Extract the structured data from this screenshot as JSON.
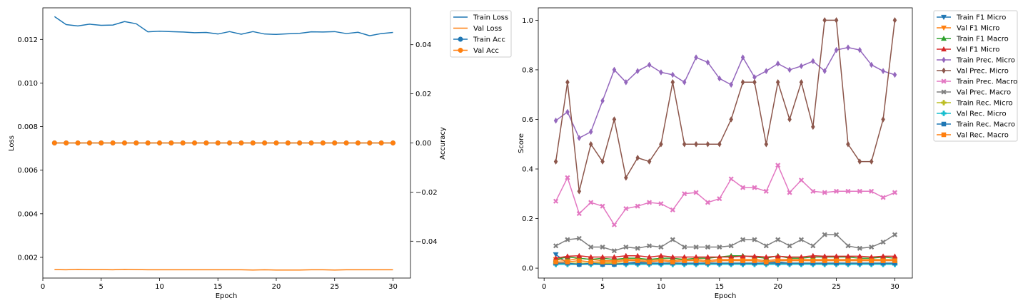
{
  "chart_data": [
    {
      "type": "line",
      "xlabel": "Epoch",
      "ylabel": "Loss",
      "y2label": "Accuracy",
      "xlim": [
        0,
        31.5
      ],
      "ylim": [
        0.00105,
        0.01345
      ],
      "y2lim": [
        -0.055,
        0.055
      ],
      "xticks": [
        0,
        5,
        10,
        15,
        20,
        25,
        30
      ],
      "xtick_labels": [
        "0",
        "5",
        "10",
        "15",
        "20",
        "25",
        "30"
      ],
      "yticks": [
        0.002,
        0.004,
        0.006,
        0.008,
        0.01,
        0.012
      ],
      "ytick_labels": [
        "0.002",
        "0.004",
        "0.006",
        "0.008",
        "0.010",
        "0.012"
      ],
      "y2ticks": [
        -0.04,
        -0.02,
        0.0,
        0.02,
        0.04
      ],
      "y2tick_labels": [
        "−0.04",
        "−0.02",
        "0.00",
        "0.02",
        "0.04"
      ],
      "legend_position": "outside-top-right",
      "x": [
        1,
        2,
        3,
        4,
        5,
        6,
        7,
        8,
        9,
        10,
        11,
        12,
        13,
        14,
        15,
        16,
        17,
        18,
        19,
        20,
        21,
        22,
        23,
        24,
        25,
        26,
        27,
        28,
        29,
        30
      ],
      "series": [
        {
          "name": "Train Loss",
          "axis": "left",
          "color": "#1f77b4",
          "marker": "none",
          "values": [
            0.01305,
            0.01268,
            0.01262,
            0.0127,
            0.01265,
            0.01266,
            0.01282,
            0.01272,
            0.01235,
            0.01238,
            0.01236,
            0.01234,
            0.01231,
            0.01232,
            0.01225,
            0.01236,
            0.01224,
            0.01236,
            0.01225,
            0.01223,
            0.01226,
            0.01228,
            0.01235,
            0.01234,
            0.01236,
            0.01227,
            0.01233,
            0.01217,
            0.01227,
            0.01232
          ]
        },
        {
          "name": "Val Loss",
          "axis": "left",
          "color": "#ff7f0e",
          "marker": "none",
          "values": [
            0.00144,
            0.00143,
            0.00145,
            0.00144,
            0.00144,
            0.00143,
            0.00145,
            0.00144,
            0.00143,
            0.00143,
            0.00143,
            0.00143,
            0.00143,
            0.00143,
            0.00143,
            0.00143,
            0.00143,
            0.00142,
            0.00143,
            0.00142,
            0.00142,
            0.00142,
            0.00143,
            0.00143,
            0.00142,
            0.00143,
            0.00143,
            0.00143,
            0.00143,
            0.00143
          ]
        },
        {
          "name": "Train Acc",
          "axis": "right",
          "color": "#1f77b4",
          "marker": "circle",
          "values": [
            0,
            0,
            0,
            0,
            0,
            0,
            0,
            0,
            0,
            0,
            0,
            0,
            0,
            0,
            0,
            0,
            0,
            0,
            0,
            0,
            0,
            0,
            0,
            0,
            0,
            0,
            0,
            0,
            0,
            0
          ]
        },
        {
          "name": "Val Acc",
          "axis": "right",
          "color": "#ff7f0e",
          "marker": "circle",
          "values": [
            0,
            0,
            0,
            0,
            0,
            0,
            0,
            0,
            0,
            0,
            0,
            0,
            0,
            0,
            0,
            0,
            0,
            0,
            0,
            0,
            0,
            0,
            0,
            0,
            0,
            0,
            0,
            0,
            0,
            0
          ]
        }
      ]
    },
    {
      "type": "line",
      "xlabel": "Epoch",
      "ylabel": "Score",
      "xlim": [
        -0.5,
        31.5
      ],
      "ylim": [
        -0.04,
        1.05
      ],
      "xticks": [
        0,
        5,
        10,
        15,
        20,
        25,
        30
      ],
      "xtick_labels": [
        "0",
        "5",
        "10",
        "15",
        "20",
        "25",
        "30"
      ],
      "yticks": [
        0.0,
        0.2,
        0.4,
        0.6,
        0.8,
        1.0
      ],
      "ytick_labels": [
        "0.0",
        "0.2",
        "0.4",
        "0.6",
        "0.8",
        "1.0"
      ],
      "legend_position": "outside-top-right",
      "x": [
        1,
        2,
        3,
        4,
        5,
        6,
        7,
        8,
        9,
        10,
        11,
        12,
        13,
        14,
        15,
        16,
        17,
        18,
        19,
        20,
        21,
        22,
        23,
        24,
        25,
        26,
        27,
        28,
        29,
        30
      ],
      "series": [
        {
          "name": "Train F1 Micro",
          "color": "#1f77b4",
          "marker": "tri-down",
          "values": [
            0.055,
            0.02,
            0.015,
            0.02,
            0.02,
            0.015,
            0.02,
            0.025,
            0.02,
            0.02,
            0.02,
            0.02,
            0.02,
            0.02,
            0.02,
            0.02,
            0.02,
            0.02,
            0.02,
            0.025,
            0.02,
            0.02,
            0.02,
            0.02,
            0.02,
            0.02,
            0.02,
            0.02,
            0.02,
            0.02
          ]
        },
        {
          "name": "Val F1 Micro",
          "color": "#ff7f0e",
          "marker": "tri-down",
          "values": [
            0.035,
            0.03,
            0.04,
            0.035,
            0.03,
            0.03,
            0.035,
            0.035,
            0.03,
            0.035,
            0.03,
            0.035,
            0.035,
            0.03,
            0.035,
            0.035,
            0.035,
            0.035,
            0.03,
            0.035,
            0.035,
            0.035,
            0.035,
            0.035,
            0.035,
            0.035,
            0.035,
            0.035,
            0.035,
            0.035
          ]
        },
        {
          "name": "Train F1 Macro",
          "color": "#2ca02c",
          "marker": "tri-up",
          "values": [
            0.035,
            0.045,
            0.04,
            0.035,
            0.04,
            0.035,
            0.04,
            0.04,
            0.035,
            0.04,
            0.04,
            0.035,
            0.04,
            0.04,
            0.045,
            0.05,
            0.05,
            0.045,
            0.04,
            0.05,
            0.04,
            0.04,
            0.045,
            0.045,
            0.045,
            0.045,
            0.04,
            0.04,
            0.045,
            0.04
          ]
        },
        {
          "name": "Val F1 Micro",
          "color": "#d62728",
          "marker": "tri-up",
          "values": [
            0.04,
            0.048,
            0.05,
            0.045,
            0.045,
            0.045,
            0.05,
            0.05,
            0.045,
            0.05,
            0.045,
            0.045,
            0.045,
            0.045,
            0.045,
            0.045,
            0.048,
            0.048,
            0.045,
            0.048,
            0.045,
            0.045,
            0.05,
            0.048,
            0.048,
            0.048,
            0.048,
            0.045,
            0.048,
            0.048
          ]
        },
        {
          "name": "Train Prec. Micro",
          "color": "#9467bd",
          "marker": "thin-diamond",
          "values": [
            0.595,
            0.63,
            0.525,
            0.55,
            0.675,
            0.8,
            0.75,
            0.795,
            0.82,
            0.79,
            0.78,
            0.75,
            0.85,
            0.83,
            0.765,
            0.74,
            0.85,
            0.77,
            0.795,
            0.825,
            0.8,
            0.815,
            0.835,
            0.795,
            0.88,
            0.89,
            0.88,
            0.82,
            0.795,
            0.78
          ]
        },
        {
          "name": "Val Prec. Micro",
          "color": "#8c564b",
          "marker": "thin-diamond",
          "values": [
            0.43,
            0.75,
            0.31,
            0.5,
            0.43,
            0.6,
            0.365,
            0.445,
            0.43,
            0.5,
            0.75,
            0.5,
            0.5,
            0.5,
            0.5,
            0.6,
            0.75,
            0.75,
            0.5,
            0.75,
            0.6,
            0.75,
            0.57,
            1.0,
            1.0,
            0.5,
            0.43,
            0.43,
            0.6,
            1.0
          ]
        },
        {
          "name": "Train Prec. Macro",
          "color": "#e377c2",
          "marker": "x-filled",
          "values": [
            0.27,
            0.365,
            0.22,
            0.265,
            0.25,
            0.175,
            0.24,
            0.25,
            0.265,
            0.26,
            0.235,
            0.3,
            0.305,
            0.265,
            0.28,
            0.36,
            0.325,
            0.325,
            0.31,
            0.415,
            0.305,
            0.355,
            0.31,
            0.305,
            0.31,
            0.31,
            0.31,
            0.31,
            0.285,
            0.305
          ]
        },
        {
          "name": "Val Prec. Macro",
          "color": "#7f7f7f",
          "marker": "x-filled",
          "values": [
            0.09,
            0.115,
            0.12,
            0.085,
            0.085,
            0.07,
            0.085,
            0.08,
            0.09,
            0.085,
            0.115,
            0.085,
            0.085,
            0.085,
            0.085,
            0.09,
            0.115,
            0.115,
            0.09,
            0.115,
            0.09,
            0.115,
            0.09,
            0.135,
            0.135,
            0.09,
            0.08,
            0.085,
            0.105,
            0.135
          ]
        },
        {
          "name": "Train Rec. Micro",
          "color": "#bcbd22",
          "marker": "plus-filled",
          "values": [
            0.02,
            0.02,
            0.02,
            0.02,
            0.02,
            0.02,
            0.02,
            0.02,
            0.02,
            0.02,
            0.02,
            0.02,
            0.02,
            0.02,
            0.02,
            0.02,
            0.02,
            0.02,
            0.02,
            0.02,
            0.02,
            0.02,
            0.02,
            0.02,
            0.02,
            0.02,
            0.02,
            0.02,
            0.02,
            0.02
          ]
        },
        {
          "name": "Val Rec. Micro",
          "color": "#17becf",
          "marker": "plus-filled",
          "values": [
            0.015,
            0.015,
            0.015,
            0.015,
            0.015,
            0.015,
            0.015,
            0.015,
            0.015,
            0.015,
            0.015,
            0.015,
            0.015,
            0.015,
            0.015,
            0.015,
            0.015,
            0.015,
            0.015,
            0.015,
            0.015,
            0.015,
            0.015,
            0.015,
            0.015,
            0.015,
            0.015,
            0.015,
            0.015,
            0.015
          ]
        },
        {
          "name": "Train Rec. Macro",
          "color": "#1f77b4",
          "marker": "square",
          "values": [
            0.02,
            0.02,
            0.015,
            0.02,
            0.015,
            0.015,
            0.02,
            0.02,
            0.02,
            0.02,
            0.02,
            0.02,
            0.02,
            0.02,
            0.02,
            0.02,
            0.02,
            0.02,
            0.02,
            0.02,
            0.02,
            0.02,
            0.02,
            0.02,
            0.02,
            0.02,
            0.02,
            0.02,
            0.02,
            0.02
          ]
        },
        {
          "name": "Val Rec. Macro",
          "color": "#ff7f0e",
          "marker": "square",
          "values": [
            0.025,
            0.025,
            0.03,
            0.025,
            0.025,
            0.025,
            0.03,
            0.03,
            0.025,
            0.03,
            0.025,
            0.03,
            0.03,
            0.025,
            0.03,
            0.03,
            0.03,
            0.03,
            0.025,
            0.03,
            0.03,
            0.03,
            0.03,
            0.03,
            0.03,
            0.03,
            0.03,
            0.03,
            0.03,
            0.03
          ]
        }
      ]
    }
  ]
}
